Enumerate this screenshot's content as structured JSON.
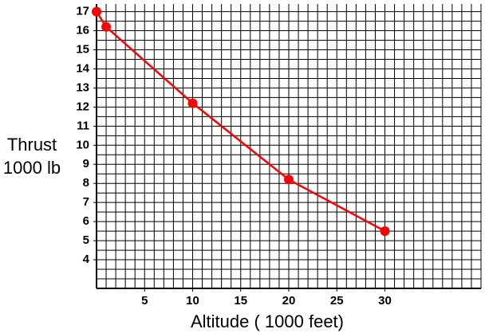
{
  "chart_data": {
    "type": "line",
    "ylabel_lines": [
      "Thrust",
      "1000 lb"
    ],
    "xlabel": "Altitude ( 1000 feet)",
    "x": [
      0,
      1,
      10,
      20,
      30
    ],
    "series": [
      {
        "color": "#ff0000",
        "values": [
          17,
          16.2,
          12.2,
          8.2,
          5.5
        ]
      }
    ],
    "xlim": [
      0,
      40
    ],
    "ylim": [
      2.5,
      17.4
    ],
    "xticks": [
      5,
      10,
      15,
      20,
      25,
      30
    ],
    "yticks": [
      4,
      5,
      6,
      7,
      8,
      9,
      10,
      11,
      12,
      13,
      14,
      15,
      16,
      17
    ],
    "grid": true,
    "xgrid_step": 1,
    "ygrid_step": 0.5
  }
}
